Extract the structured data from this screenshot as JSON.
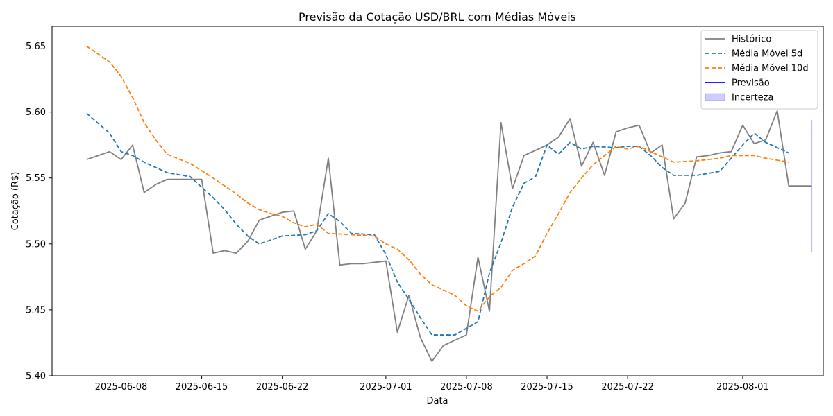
{
  "chart_data": {
    "type": "line",
    "title": "Previsão da Cotação USD/BRL com Médias Móveis",
    "xlabel": "Data",
    "ylabel": "Cotação (R$)",
    "ylim": [
      5.4,
      5.665
    ],
    "xlim": [
      "2025-06-02",
      "2025-08-08"
    ],
    "x_ticks": [
      "2025-06-08",
      "2025-06-15",
      "2025-06-22",
      "2025-07-01",
      "2025-07-08",
      "2025-07-15",
      "2025-07-22",
      "2025-08-01"
    ],
    "y_ticks": [
      "5.40",
      "5.45",
      "5.50",
      "5.55",
      "5.60",
      "5.65"
    ],
    "grid": false,
    "legend_position": "top-right",
    "series": [
      {
        "name": "Histórico",
        "color": "#808080",
        "style": "solid",
        "points": [
          [
            "2025-06-05",
            5.564
          ],
          [
            "2025-06-06",
            5.567
          ],
          [
            "2025-06-07",
            5.57
          ],
          [
            "2025-06-08",
            5.564
          ],
          [
            "2025-06-09",
            5.575
          ],
          [
            "2025-06-10",
            5.539
          ],
          [
            "2025-06-11",
            5.545
          ],
          [
            "2025-06-12",
            5.549
          ],
          [
            "2025-06-13",
            5.549
          ],
          [
            "2025-06-14",
            5.549
          ],
          [
            "2025-06-15",
            5.549
          ],
          [
            "2025-06-16",
            5.493
          ],
          [
            "2025-06-17",
            5.495
          ],
          [
            "2025-06-18",
            5.493
          ],
          [
            "2025-06-19",
            5.502
          ],
          [
            "2025-06-20",
            5.518
          ],
          [
            "2025-06-21",
            5.521
          ],
          [
            "2025-06-22",
            5.524
          ],
          [
            "2025-06-23",
            5.525
          ],
          [
            "2025-06-24",
            5.496
          ],
          [
            "2025-06-25",
            5.51
          ],
          [
            "2025-06-26",
            5.565
          ],
          [
            "2025-06-27",
            5.484
          ],
          [
            "2025-06-28",
            5.485
          ],
          [
            "2025-06-29",
            5.485
          ],
          [
            "2025-06-30",
            5.486
          ],
          [
            "2025-07-01",
            5.487
          ],
          [
            "2025-07-02",
            5.433
          ],
          [
            "2025-07-03",
            5.461
          ],
          [
            "2025-07-04",
            5.429
          ],
          [
            "2025-07-05",
            5.411
          ],
          [
            "2025-07-06",
            5.423
          ],
          [
            "2025-07-07",
            5.427
          ],
          [
            "2025-07-08",
            5.431
          ],
          [
            "2025-07-09",
            5.49
          ],
          [
            "2025-07-10",
            5.449
          ],
          [
            "2025-07-11",
            5.592
          ],
          [
            "2025-07-12",
            5.542
          ],
          [
            "2025-07-13",
            5.567
          ],
          [
            "2025-07-14",
            5.571
          ],
          [
            "2025-07-15",
            5.575
          ],
          [
            "2025-07-16",
            5.581
          ],
          [
            "2025-07-17",
            5.595
          ],
          [
            "2025-07-18",
            5.559
          ],
          [
            "2025-07-19",
            5.577
          ],
          [
            "2025-07-20",
            5.552
          ],
          [
            "2025-07-21",
            5.585
          ],
          [
            "2025-07-22",
            5.588
          ],
          [
            "2025-07-23",
            5.59
          ],
          [
            "2025-07-24",
            5.569
          ],
          [
            "2025-07-25",
            5.575
          ],
          [
            "2025-07-26",
            5.519
          ],
          [
            "2025-07-27",
            5.531
          ],
          [
            "2025-07-28",
            5.566
          ],
          [
            "2025-07-29",
            5.567
          ],
          [
            "2025-07-30",
            5.569
          ],
          [
            "2025-07-31",
            5.57
          ],
          [
            "2025-08-01",
            5.59
          ],
          [
            "2025-08-02",
            5.576
          ],
          [
            "2025-08-03",
            5.579
          ],
          [
            "2025-08-04",
            5.601
          ],
          [
            "2025-08-05",
            5.544
          ],
          [
            "2025-08-07",
            5.544
          ]
        ]
      },
      {
        "name": "Média Móvel 5d",
        "color": "#1f77b4",
        "style": "dashed",
        "points": [
          [
            "2025-06-05",
            5.599
          ],
          [
            "2025-06-07",
            5.584
          ],
          [
            "2025-06-08",
            5.57
          ],
          [
            "2025-06-09",
            5.567
          ],
          [
            "2025-06-10",
            5.562
          ],
          [
            "2025-06-11",
            5.558
          ],
          [
            "2025-06-12",
            5.554
          ],
          [
            "2025-06-14",
            5.551
          ],
          [
            "2025-06-16",
            5.535
          ],
          [
            "2025-06-17",
            5.526
          ],
          [
            "2025-06-18",
            5.515
          ],
          [
            "2025-06-19",
            5.506
          ],
          [
            "2025-06-20",
            5.5
          ],
          [
            "2025-06-21",
            5.503
          ],
          [
            "2025-06-22",
            5.506
          ],
          [
            "2025-06-24",
            5.507
          ],
          [
            "2025-06-25",
            5.51
          ],
          [
            "2025-06-26",
            5.523
          ],
          [
            "2025-06-27",
            5.517
          ],
          [
            "2025-06-28",
            5.508
          ],
          [
            "2025-06-30",
            5.507
          ],
          [
            "2025-07-01",
            5.492
          ],
          [
            "2025-07-02",
            5.471
          ],
          [
            "2025-07-03",
            5.458
          ],
          [
            "2025-07-04",
            5.444
          ],
          [
            "2025-07-05",
            5.431
          ],
          [
            "2025-07-07",
            5.431
          ],
          [
            "2025-07-08",
            5.436
          ],
          [
            "2025-07-09",
            5.441
          ],
          [
            "2025-07-10",
            5.478
          ],
          [
            "2025-07-11",
            5.501
          ],
          [
            "2025-07-12",
            5.528
          ],
          [
            "2025-07-13",
            5.546
          ],
          [
            "2025-07-14",
            5.551
          ],
          [
            "2025-07-15",
            5.575
          ],
          [
            "2025-07-16",
            5.568
          ],
          [
            "2025-07-17",
            5.577
          ],
          [
            "2025-07-18",
            5.572
          ],
          [
            "2025-07-19",
            5.574
          ],
          [
            "2025-07-21",
            5.573
          ],
          [
            "2025-07-22",
            5.574
          ],
          [
            "2025-07-23",
            5.574
          ],
          [
            "2025-07-24",
            5.567
          ],
          [
            "2025-07-25",
            5.558
          ],
          [
            "2025-07-26",
            5.552
          ],
          [
            "2025-07-28",
            5.552
          ],
          [
            "2025-07-30",
            5.555
          ],
          [
            "2025-07-31",
            5.565
          ],
          [
            "2025-08-01",
            5.575
          ],
          [
            "2025-08-02",
            5.584
          ],
          [
            "2025-08-03",
            5.577
          ],
          [
            "2025-08-05",
            5.569
          ]
        ]
      },
      {
        "name": "Média Móvel 10d",
        "color": "#ff7f0e",
        "style": "dashed",
        "points": [
          [
            "2025-06-05",
            5.65
          ],
          [
            "2025-06-07",
            5.638
          ],
          [
            "2025-06-08",
            5.627
          ],
          [
            "2025-06-09",
            5.611
          ],
          [
            "2025-06-10",
            5.592
          ],
          [
            "2025-06-11",
            5.579
          ],
          [
            "2025-06-12",
            5.568
          ],
          [
            "2025-06-14",
            5.561
          ],
          [
            "2025-06-16",
            5.55
          ],
          [
            "2025-06-18",
            5.538
          ],
          [
            "2025-06-19",
            5.531
          ],
          [
            "2025-06-20",
            5.526
          ],
          [
            "2025-06-21",
            5.523
          ],
          [
            "2025-06-22",
            5.521
          ],
          [
            "2025-06-23",
            5.516
          ],
          [
            "2025-06-24",
            5.513
          ],
          [
            "2025-06-25",
            5.515
          ],
          [
            "2025-06-26",
            5.508
          ],
          [
            "2025-06-28",
            5.507
          ],
          [
            "2025-06-30",
            5.506
          ],
          [
            "2025-07-01",
            5.5
          ],
          [
            "2025-07-02",
            5.496
          ],
          [
            "2025-07-03",
            5.488
          ],
          [
            "2025-07-04",
            5.477
          ],
          [
            "2025-07-05",
            5.469
          ],
          [
            "2025-07-06",
            5.465
          ],
          [
            "2025-07-07",
            5.461
          ],
          [
            "2025-07-08",
            5.453
          ],
          [
            "2025-07-09",
            5.449
          ],
          [
            "2025-07-10",
            5.46
          ],
          [
            "2025-07-11",
            5.467
          ],
          [
            "2025-07-12",
            5.48
          ],
          [
            "2025-07-13",
            5.485
          ],
          [
            "2025-07-14",
            5.491
          ],
          [
            "2025-07-15",
            5.508
          ],
          [
            "2025-07-16",
            5.523
          ],
          [
            "2025-07-17",
            5.539
          ],
          [
            "2025-07-18",
            5.55
          ],
          [
            "2025-07-19",
            5.56
          ],
          [
            "2025-07-20",
            5.567
          ],
          [
            "2025-07-21",
            5.574
          ],
          [
            "2025-07-22",
            5.572
          ],
          [
            "2025-07-23",
            5.574
          ],
          [
            "2025-07-24",
            5.57
          ],
          [
            "2025-07-25",
            5.566
          ],
          [
            "2025-07-26",
            5.562
          ],
          [
            "2025-07-28",
            5.563
          ],
          [
            "2025-07-30",
            5.565
          ],
          [
            "2025-07-31",
            5.567
          ],
          [
            "2025-08-01",
            5.567
          ],
          [
            "2025-08-02",
            5.567
          ],
          [
            "2025-08-03",
            5.565
          ],
          [
            "2025-08-05",
            5.562
          ]
        ]
      },
      {
        "name": "Previsão",
        "color": "#0000ff",
        "style": "solid",
        "points": []
      }
    ],
    "bands": [
      {
        "name": "Incerteza",
        "color": "#0000ff",
        "opacity": 0.2,
        "x": "2025-08-07",
        "low": 5.494,
        "high": 5.594
      }
    ]
  }
}
